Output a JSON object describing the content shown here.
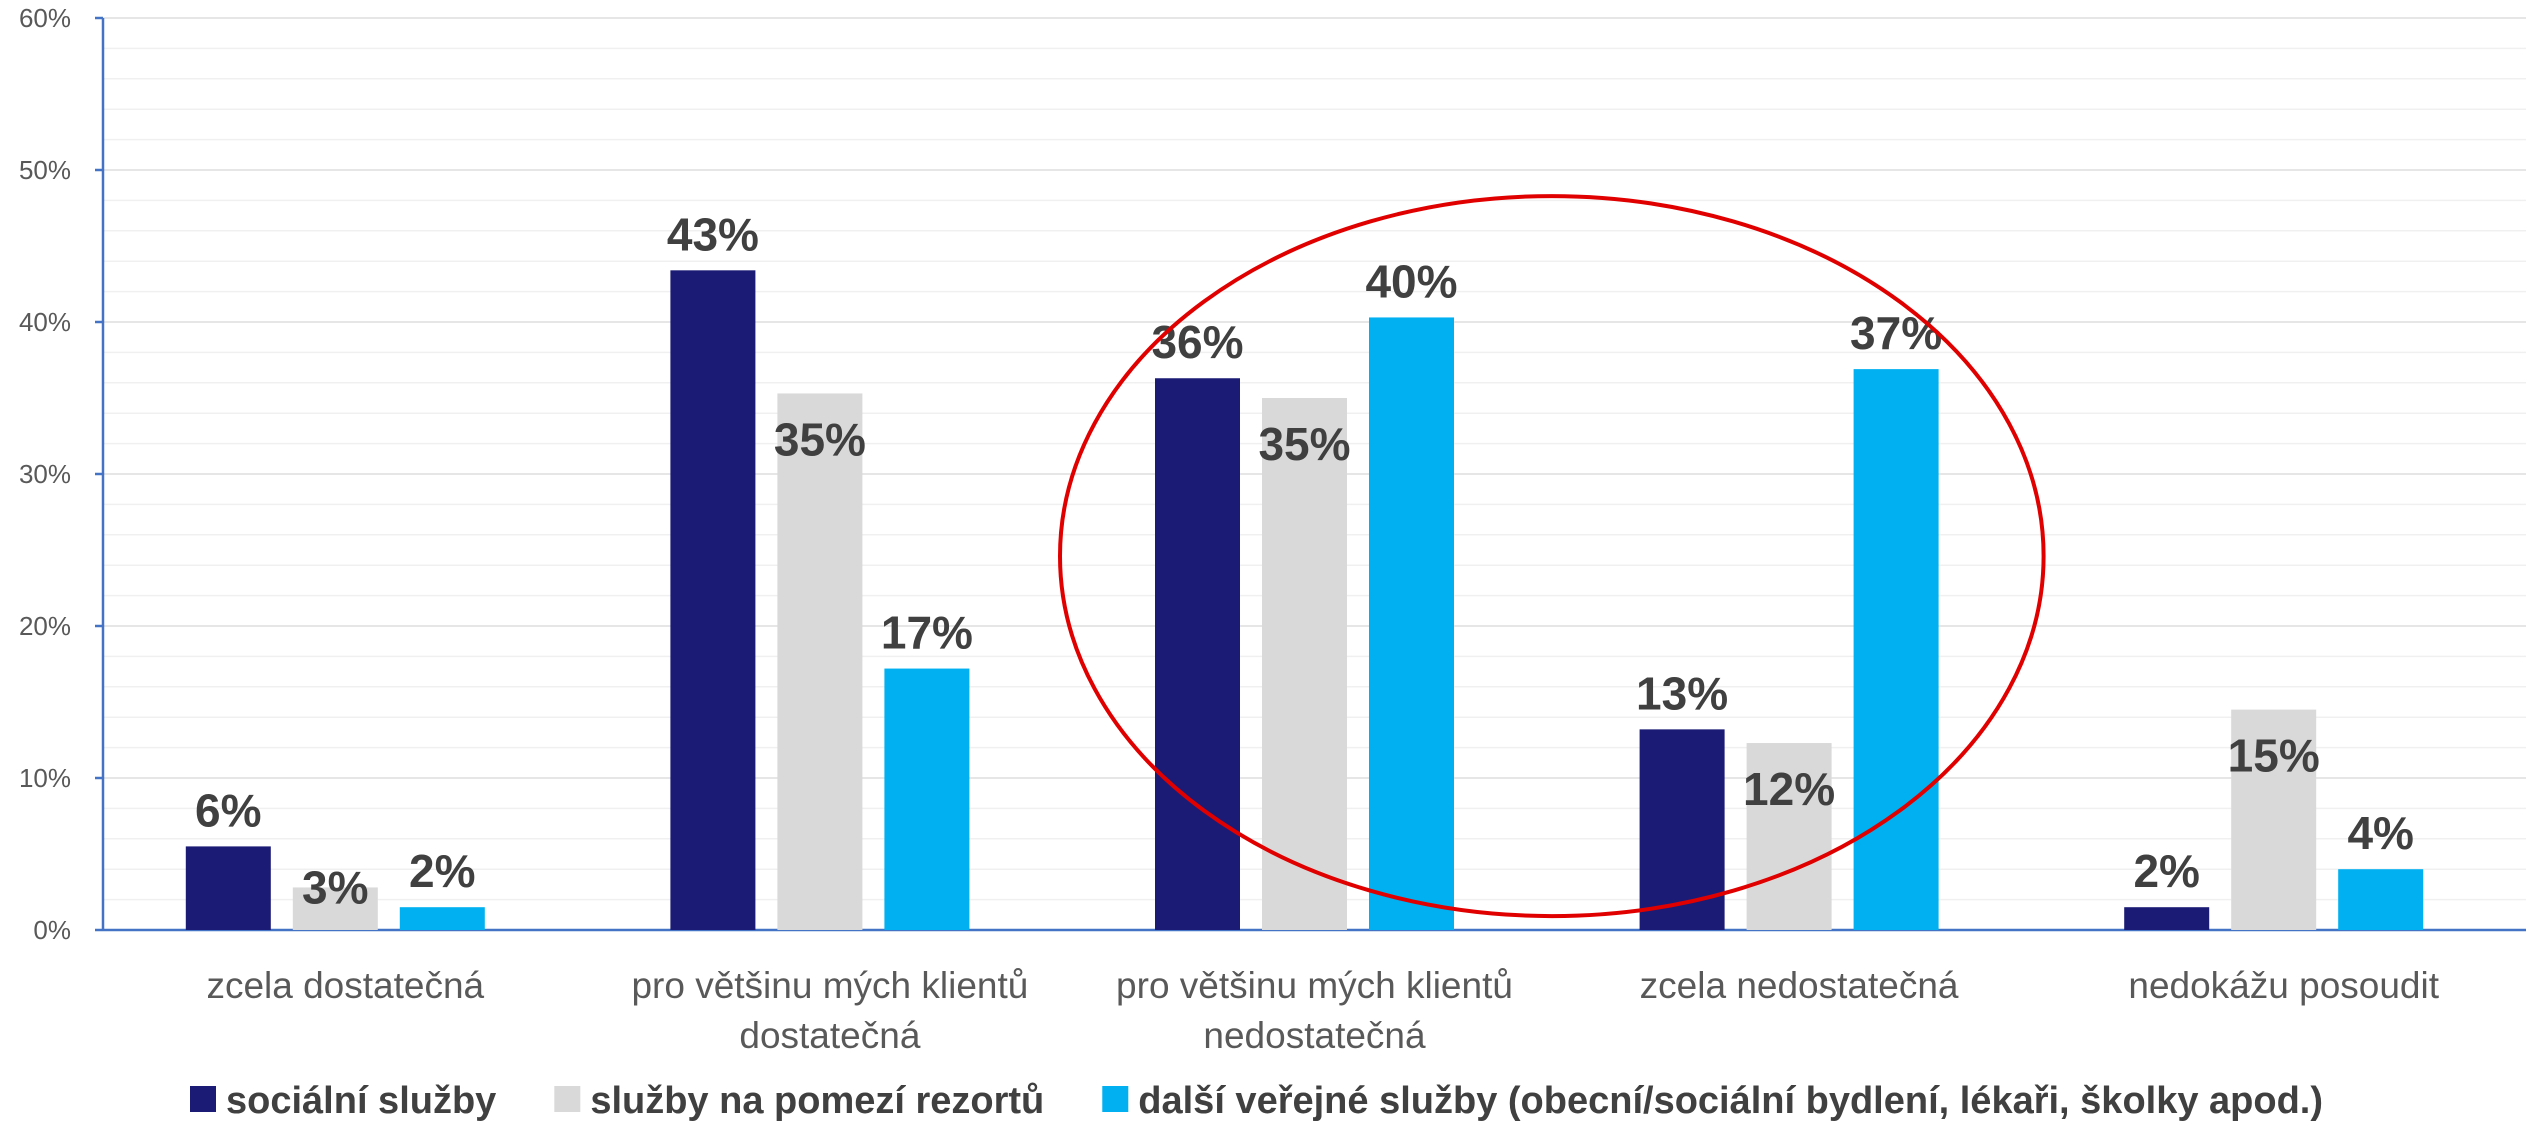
{
  "chart_data": {
    "type": "bar",
    "categories": [
      [
        "zcela dostatečná"
      ],
      [
        "pro většinu mých klientů",
        "dostatečná"
      ],
      [
        "pro většinu mých klientů",
        "nedostatečná"
      ],
      [
        "zcela nedostatečná"
      ],
      [
        "nedokážu  posoudit"
      ]
    ],
    "series": [
      {
        "name": "sociální služby",
        "color": "#1b1b75",
        "values": [
          5.5,
          43.4,
          36.3,
          13.2,
          1.5
        ],
        "labels": [
          "6%",
          "43%",
          "36%",
          "13%",
          "2%"
        ]
      },
      {
        "name": "služby na pomezí rezortů",
        "color": "#d9d9d9",
        "values": [
          2.8,
          35.3,
          35.0,
          12.3,
          14.5
        ],
        "labels": [
          "3%",
          "35%",
          "35%",
          "12%",
          "15%"
        ]
      },
      {
        "name": "další veřejné služby (obecní/sociální bydlení, lékaři, školky apod.)",
        "color": "#00b0f0",
        "values": [
          1.5,
          17.2,
          40.3,
          36.9,
          4.0
        ],
        "labels": [
          "2%",
          "17%",
          "40%",
          "37%",
          "4%"
        ]
      }
    ],
    "ylim": [
      0,
      60
    ],
    "yticks": [
      "0%",
      "10%",
      "20%",
      "30%",
      "40%",
      "50%",
      "60%"
    ],
    "grid": true,
    "legend_position": "bottom",
    "annotation": {
      "shape": "ellipse",
      "color": "#e00000",
      "encloses_categories": [
        2,
        3
      ]
    }
  }
}
